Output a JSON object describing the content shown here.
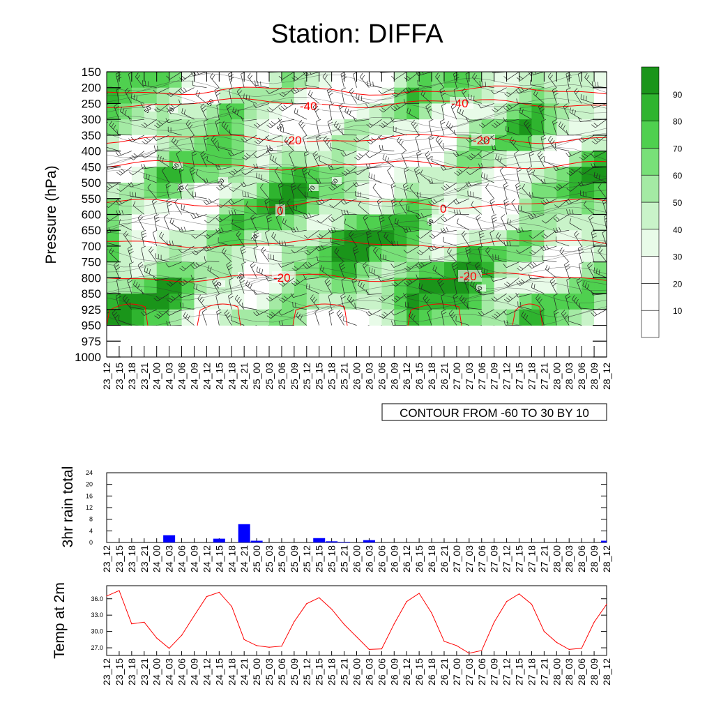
{
  "title": "Station: DIFFA",
  "colors": {
    "shade": [
      "#ffffff",
      "#ffffff",
      "#ffffff",
      "#e8fbe8",
      "#c9f3c9",
      "#a4eaa4",
      "#78e078",
      "#4fd04f",
      "#2fb42f",
      "#1a951a"
    ],
    "axis": "#000000",
    "temp_isotherm": "#ff0000",
    "rain_bar": "#0000ff",
    "temp_line": "#ff0000"
  },
  "time_labels": [
    "23_12",
    "23_15",
    "23_18",
    "23_21",
    "24_00",
    "24_03",
    "24_06",
    "24_09",
    "24_12",
    "24_15",
    "24_18",
    "24_21",
    "25_00",
    "25_03",
    "25_06",
    "25_09",
    "25_12",
    "25_15",
    "25_18",
    "25_21",
    "26_00",
    "26_03",
    "26_06",
    "26_09",
    "26_12",
    "26_15",
    "26_18",
    "26_21",
    "27_00",
    "27_03",
    "27_06",
    "27_09",
    "27_12",
    "27_15",
    "27_18",
    "27_21",
    "28_00",
    "28_03",
    "28_06",
    "28_09",
    "28_12"
  ],
  "chart_data": [
    {
      "type": "heatmap",
      "title": "Station: DIFFA",
      "ylabel": "Pressure (hPa)",
      "y_tick_labels": [
        "150",
        "200",
        "250",
        "300",
        "350",
        "400",
        "450",
        "500",
        "550",
        "600",
        "650",
        "700",
        "750",
        "800",
        "850",
        "925",
        "950",
        "975",
        "1000"
      ],
      "colorbar_labels": [
        "10",
        "20",
        "30",
        "40",
        "50",
        "60",
        "70",
        "80",
        "90"
      ],
      "humidity_contour_labels": [
        "50",
        "70",
        "50",
        "50",
        "70",
        "30",
        "50",
        "70",
        "50",
        "70",
        "30",
        "70",
        "30",
        "70",
        "50"
      ],
      "isotherm_labels": [
        "-40",
        "-20",
        "0",
        "-20",
        "-40",
        "-20",
        "0",
        "-20"
      ],
      "note": "CONTOUR FROM -60 TO 30 BY 10"
    },
    {
      "type": "bar",
      "ylabel": "3hr rain total",
      "ylim": [
        0,
        24
      ],
      "y_ticks": [
        "0",
        "4",
        "8",
        "12",
        "16",
        "20",
        "24"
      ],
      "values": [
        0,
        0,
        0,
        0,
        0,
        2.5,
        0,
        0,
        0,
        1.3,
        0,
        6.3,
        0.6,
        0,
        0,
        0,
        0,
        1.5,
        0.4,
        0.2,
        0,
        0.8,
        0,
        0,
        0,
        0,
        0,
        0,
        0,
        0,
        0,
        0,
        0,
        0,
        0,
        0,
        0,
        0,
        0,
        0,
        0.6
      ]
    },
    {
      "type": "line",
      "ylabel": "Temp at 2m",
      "ylim": [
        25.6,
        38.4
      ],
      "y_ticks": [
        "27.0",
        "30.0",
        "33.0",
        "36.0"
      ],
      "values": [
        36.5,
        37.5,
        31.4,
        31.7,
        28.8,
        26.9,
        29.3,
        32.9,
        36.4,
        37.2,
        34.6,
        28.5,
        27.4,
        27.1,
        27.3,
        31.8,
        35.1,
        36.2,
        34.1,
        31.3,
        29.0,
        26.7,
        26.8,
        31.4,
        35.5,
        37.0,
        33.4,
        28.2,
        27.4,
        26.0,
        26.5,
        31.7,
        35.5,
        36.9,
        35.0,
        30.0,
        28.0,
        26.7,
        26.9,
        31.7,
        35.0
      ]
    }
  ]
}
